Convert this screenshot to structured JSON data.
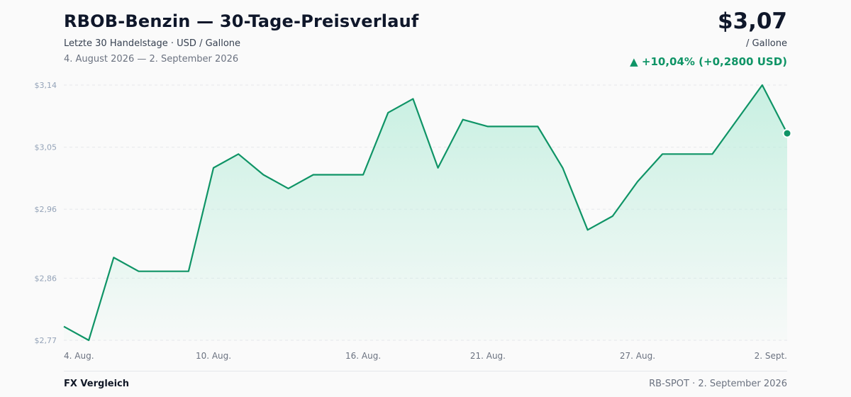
{
  "header": {
    "title": "RBOB-Benzin — 30-Tage-Preisverlauf",
    "subtitle": "Letzte 30 Handelstage · USD / Gallone",
    "date_range": "4. August 2026 — 2. September 2026"
  },
  "summary": {
    "price": "$3,07",
    "unit": "/ Gallone",
    "change": "▲ +10,04% (+0,2800 USD)"
  },
  "colors": {
    "line": "#0f9466",
    "fill": "#bfeedd",
    "positive": "#0f9466",
    "grid": "#e5e7eb",
    "tick": "#94a3b8",
    "xtick": "#6b7280"
  },
  "chart_data": {
    "type": "area",
    "title": "RBOB-Benzin — 30-Tage-Preisverlauf",
    "ylabel": "",
    "xlabel": "",
    "ylim": [
      2.77,
      3.14
    ],
    "yticks": [
      2.77,
      2.86,
      2.96,
      3.05,
      3.14
    ],
    "ytick_labels": [
      "$2,77",
      "$2,86",
      "$2,96",
      "$3,05",
      "$3,14"
    ],
    "xtick_labels": [
      {
        "index": 0,
        "label": "4. Aug."
      },
      {
        "index": 6,
        "label": "10. Aug."
      },
      {
        "index": 12,
        "label": "16. Aug."
      },
      {
        "index": 17,
        "label": "21. Aug."
      },
      {
        "index": 23,
        "label": "27. Aug."
      },
      {
        "index": 29,
        "label": "2. Sept."
      }
    ],
    "grid": true,
    "values": [
      2.79,
      2.77,
      2.89,
      2.87,
      2.87,
      2.87,
      3.02,
      3.04,
      3.01,
      2.99,
      3.01,
      3.01,
      3.01,
      3.1,
      3.12,
      3.02,
      3.09,
      3.08,
      3.08,
      3.08,
      3.02,
      2.93,
      2.95,
      3.0,
      3.04,
      3.04,
      3.04,
      3.09,
      3.14,
      3.07
    ]
  },
  "footer": {
    "left": "FX Vergleich",
    "right": "RB-SPOT · 2. September 2026"
  }
}
